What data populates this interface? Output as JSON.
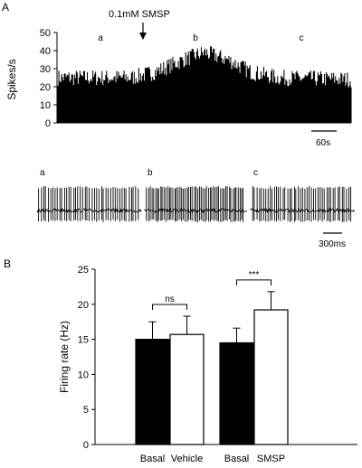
{
  "chart_data": [
    {
      "panel": "A",
      "type": "bar",
      "ylabel": "Spikes/s",
      "ylim": [
        0,
        50
      ],
      "yticks": [
        0,
        10,
        20,
        30,
        40,
        50
      ],
      "annotation": "0.1mM SMSP",
      "epoch_labels": [
        "a",
        "b",
        "c"
      ],
      "scale_bar": "60s",
      "profile": {
        "x_fraction": [
          0.0,
          0.25,
          0.33,
          0.43,
          0.5,
          0.58,
          0.66,
          0.75,
          1.0
        ],
        "rate": [
          25,
          25,
          28,
          35,
          39,
          35,
          28,
          25,
          24
        ]
      }
    },
    {
      "panel": "A-traces",
      "type": "line",
      "trace_labels": [
        "a",
        "b",
        "c"
      ],
      "spike_counts": [
        44,
        56,
        46
      ],
      "scale_bar": "300ms"
    },
    {
      "panel": "B",
      "type": "bar",
      "ylabel": "Firing rate (Hz)",
      "ylim": [
        0,
        25
      ],
      "yticks": [
        0,
        5,
        10,
        15,
        20,
        25
      ],
      "categories": [
        "Basal",
        "Vehicle",
        "Basal",
        "SMSP"
      ],
      "values": [
        15.0,
        15.7,
        14.5,
        19.2
      ],
      "errors": [
        2.5,
        2.6,
        2.1,
        2.6
      ],
      "fills": [
        "#000000",
        "#ffffff",
        "#000000",
        "#ffffff"
      ],
      "significance": [
        {
          "pair": [
            0,
            1
          ],
          "label": "ns"
        },
        {
          "pair": [
            2,
            3
          ],
          "label": "***"
        }
      ]
    }
  ]
}
